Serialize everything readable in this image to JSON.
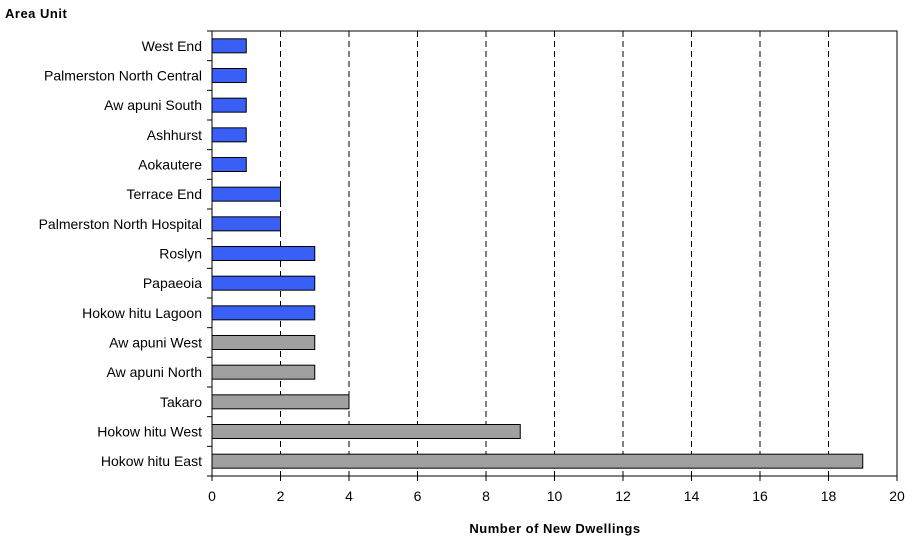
{
  "chart_data": {
    "type": "bar",
    "orientation": "horizontal",
    "ylabel": "Area Unit",
    "xlabel": "Number of New Dwellings",
    "xlim": [
      0,
      20
    ],
    "xticks": [
      "0",
      "2",
      "4",
      "6",
      "8",
      "10",
      "12",
      "14",
      "16",
      "18",
      "20"
    ],
    "grid": "vertical dashed",
    "colors": {
      "blue": "#3a5ff6",
      "grey": "#a0a0a0",
      "border": "#000000"
    },
    "bars": [
      {
        "category": "West End",
        "value": 1,
        "color": "blue"
      },
      {
        "category": "Palmerston North Central",
        "value": 1,
        "color": "blue"
      },
      {
        "category": "Aw apuni South",
        "value": 1,
        "color": "blue"
      },
      {
        "category": "Ashhurst",
        "value": 1,
        "color": "blue"
      },
      {
        "category": "Aokautere",
        "value": 1,
        "color": "blue"
      },
      {
        "category": "Terrace End",
        "value": 2,
        "color": "blue"
      },
      {
        "category": "Palmerston North Hospital",
        "value": 2,
        "color": "blue"
      },
      {
        "category": "Roslyn",
        "value": 3,
        "color": "blue"
      },
      {
        "category": "Papaeoia",
        "value": 3,
        "color": "blue"
      },
      {
        "category": "Hokow hitu Lagoon",
        "value": 3,
        "color": "blue"
      },
      {
        "category": "Aw apuni West",
        "value": 3,
        "color": "grey"
      },
      {
        "category": "Aw apuni North",
        "value": 3,
        "color": "grey"
      },
      {
        "category": "Takaro",
        "value": 4,
        "color": "grey"
      },
      {
        "category": "Hokow hitu West",
        "value": 9,
        "color": "grey"
      },
      {
        "category": "Hokow hitu East",
        "value": 19,
        "color": "grey"
      }
    ]
  }
}
